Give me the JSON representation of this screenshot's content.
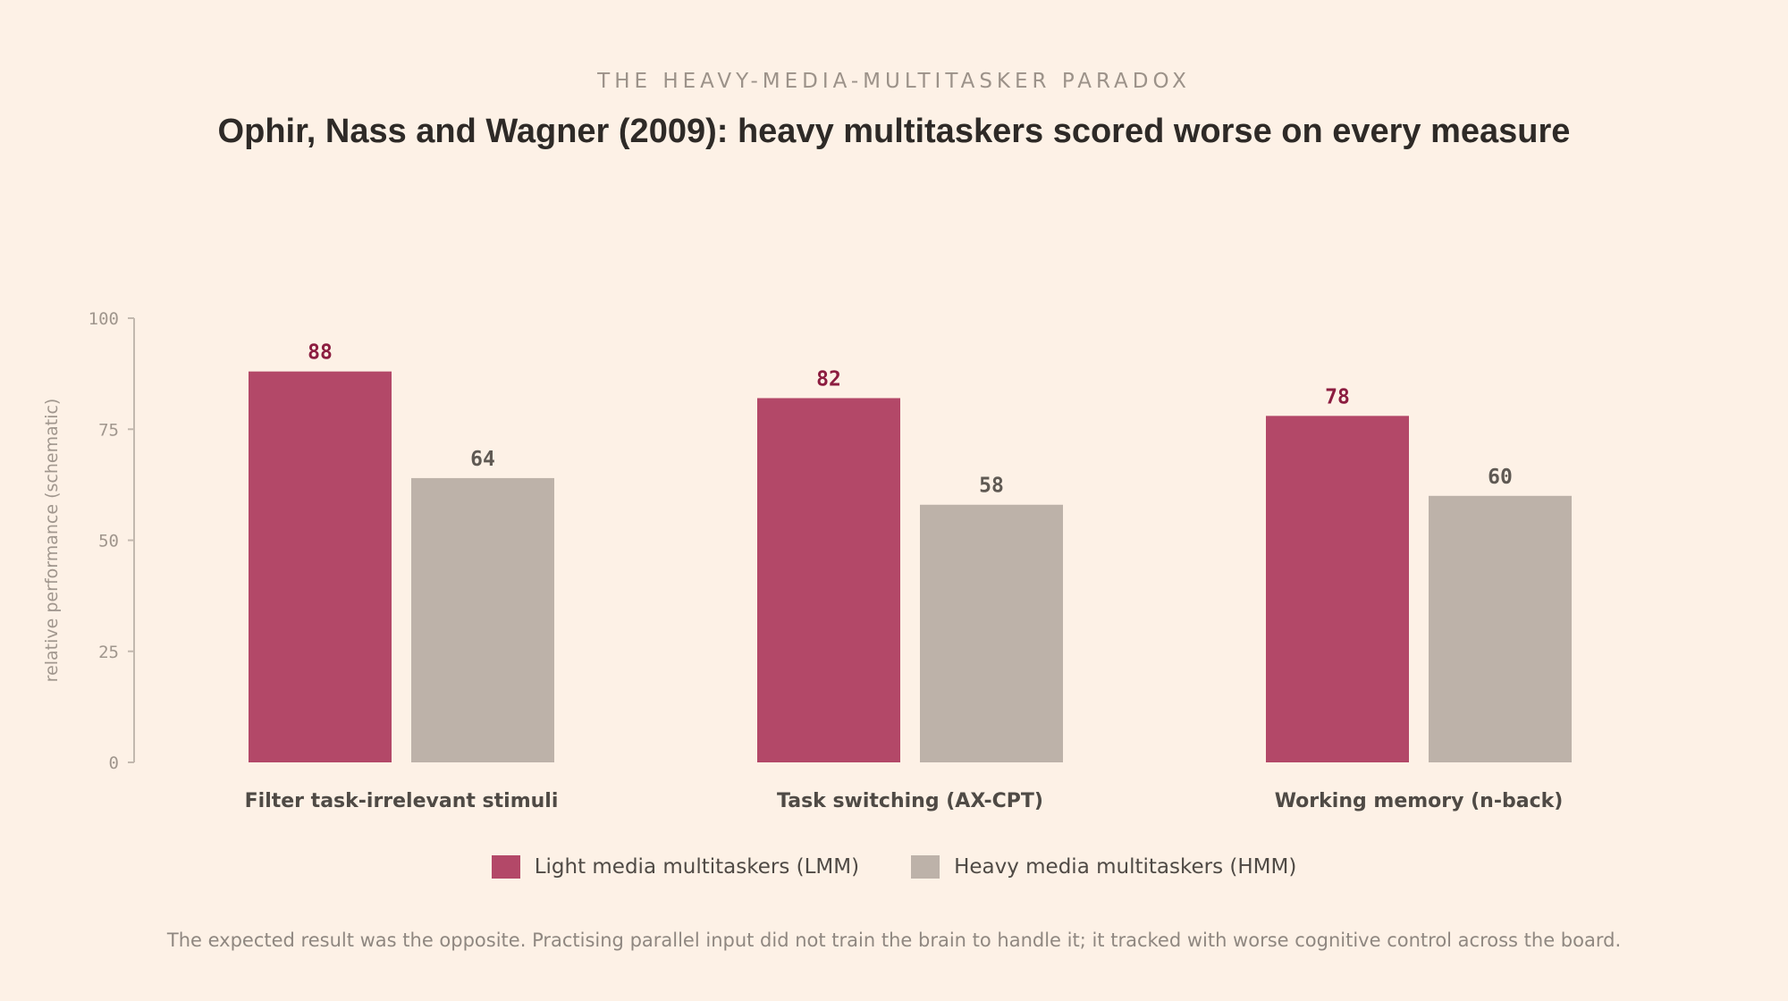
{
  "header": {
    "kicker": "THE HEAVY-MEDIA-MULTITASKER PARADOX",
    "title": "Ophir, Nass and Wagner (2009): heavy multitaskers scored worse on every measure"
  },
  "chart_data": {
    "type": "bar",
    "categories": [
      "Filter task-irrelevant stimuli",
      "Task switching (AX-CPT)",
      "Working memory (n-back)"
    ],
    "series": [
      {
        "name": "Light media multitaskers (LMM)",
        "values": [
          88,
          82,
          78
        ],
        "color": "#b34868",
        "label_color": "#8c1d40"
      },
      {
        "name": "Heavy media multitaskers (HMM)",
        "values": [
          64,
          58,
          60
        ],
        "color": "#bdb2a9",
        "label_color": "#5f5953"
      }
    ],
    "ylabel": "relative performance (schematic)",
    "ylim": [
      0,
      100
    ],
    "yticks": [
      0,
      25,
      50,
      75,
      100
    ],
    "grid": false,
    "legend": "bottom-center"
  },
  "footnote": "The expected result was the opposite. Practising parallel input did not train the brain to handle it; it tracked with worse cognitive control across the board."
}
